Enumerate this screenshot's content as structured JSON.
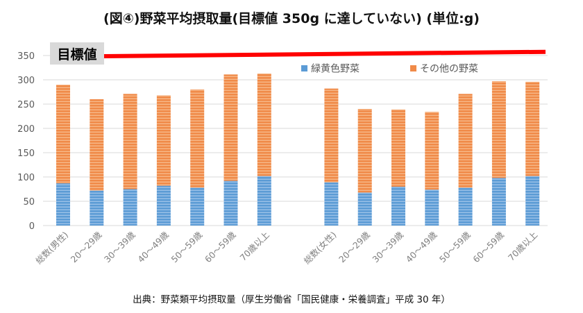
{
  "header": {
    "title": "(図④)野菜平均摂取量(目標値 350g に達していない)   (単位:g)"
  },
  "footer": {
    "source": "出典：野菜類平均摂取量（厚生労働省「国民健康・栄養調査」平成 30 年）"
  },
  "colors": {
    "green_yellow": "#5b9bd5",
    "other": "#f08a48",
    "target_line": "#ff0000",
    "target_label_bg": "#d9d9d9"
  },
  "chart_data": {
    "type": "bar",
    "stacked": true,
    "categories": [
      "総数(男性)",
      "20～29歳",
      "30～39歳",
      "40～49歳",
      "50～59歳",
      "60～59歳",
      "70歳以上",
      "",
      "総数(女性)",
      "20～29歳",
      "30～39歳",
      "40～49歳",
      "50～59歳",
      "60～59歳",
      "70歳以上"
    ],
    "series": [
      {
        "name": "緑黄色野菜",
        "values": [
          87,
          72,
          75,
          82,
          78,
          92,
          102,
          null,
          89,
          68,
          80,
          74,
          78,
          98,
          102
        ]
      },
      {
        "name": "その他の野菜",
        "values": [
          203,
          188,
          196,
          186,
          202,
          219,
          211,
          null,
          193,
          172,
          159,
          160,
          193,
          199,
          194
        ]
      }
    ],
    "yticks": [
      0,
      50,
      100,
      150,
      200,
      250,
      300,
      350
    ],
    "ylim": [
      0,
      370
    ],
    "target": {
      "label": "目標値",
      "value": 350,
      "end_value": 359
    },
    "legend": "top-right",
    "grid": true
  }
}
